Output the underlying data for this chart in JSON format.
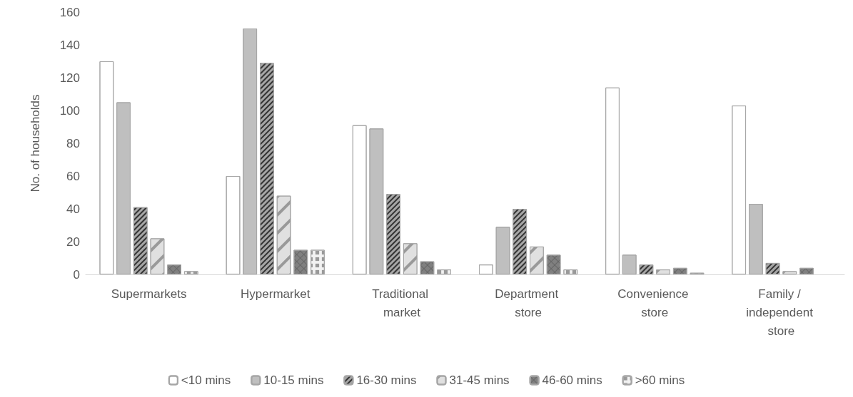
{
  "chart_data": {
    "type": "bar",
    "ylabel": "No. of households",
    "categories": [
      "Supermarkets",
      "Hypermarket",
      "Traditional market",
      "Department store",
      "Convenience store",
      "Family / independent store"
    ],
    "series": [
      {
        "name": "<10 mins",
        "color": "#ffffff",
        "values": [
          130,
          60,
          91,
          6,
          114,
          103
        ]
      },
      {
        "name": "10-15 mins",
        "color": "#bfbfbf",
        "values": [
          105,
          150,
          89,
          29,
          12,
          43
        ]
      },
      {
        "name": "16-30 mins",
        "color": "#a6a6a6",
        "values": [
          41,
          129,
          49,
          40,
          6,
          7
        ]
      },
      {
        "name": "31-45 mins",
        "color": "#e0e0e0",
        "values": [
          22,
          48,
          19,
          17,
          3,
          2
        ]
      },
      {
        "name": "46-60 mins",
        "color": "#808080",
        "values": [
          6,
          15,
          8,
          12,
          4,
          4
        ]
      },
      {
        "name": ">60 mins",
        "color": "#f2f2f2",
        "values": [
          2,
          15,
          3,
          3,
          1,
          null
        ]
      }
    ],
    "ylim": [
      0,
      160
    ],
    "yticks": [
      0,
      20,
      40,
      60,
      80,
      100,
      120,
      140,
      160
    ],
    "grid": false,
    "legend": "bottom"
  }
}
